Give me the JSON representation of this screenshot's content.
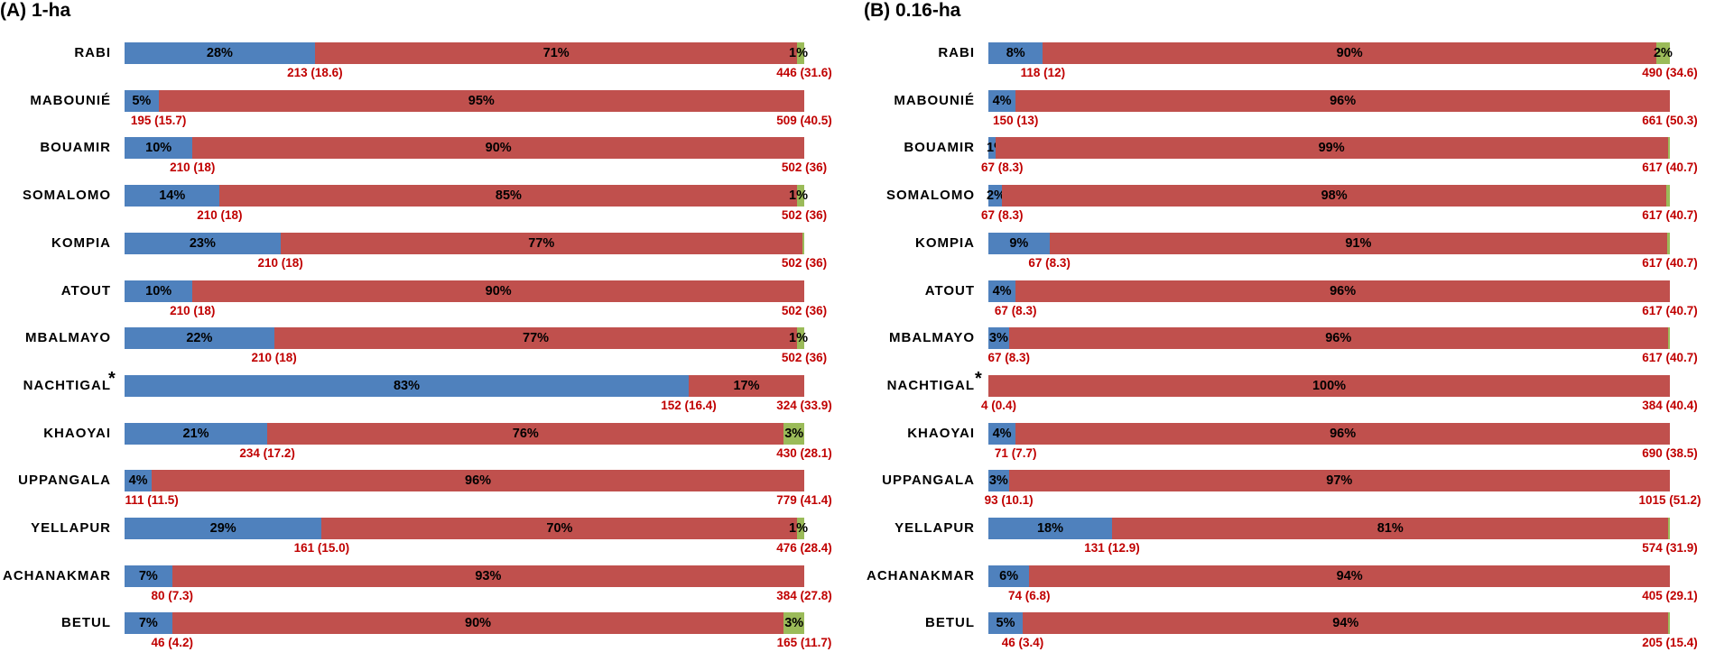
{
  "colors": {
    "seg1": "#4f81bd",
    "seg2": "#c0504d",
    "seg3": "#9bbb59",
    "annotation": "#c00000"
  },
  "chart_data": [
    {
      "type": "bar",
      "orientation": "horizontal",
      "stacked": "percent",
      "title": "(A) 1-ha",
      "categories": [
        "RABI",
        "MABOUNIÉ",
        "BOUAMIR",
        "SOMALOMO",
        "KOMPIA",
        "ATOUT",
        "MBALMAYO",
        "NACHTIGAL",
        "KHAOYAI",
        "UPPANGALA",
        "YELLAPUR",
        "ACHANAKMAR",
        "BETUL"
      ],
      "category_marks": {
        "NACHTIGAL": "*"
      },
      "series": [
        {
          "values": [
            28,
            5,
            10,
            14,
            23,
            10,
            22,
            83,
            21,
            4,
            29,
            7,
            7
          ],
          "labels": [
            "28%",
            "5%",
            "10%",
            "14%",
            "23%",
            "10%",
            "22%",
            "83%",
            "21%",
            "4%",
            "29%",
            "7%",
            "7%"
          ]
        },
        {
          "values": [
            71,
            95,
            90,
            85,
            77,
            90,
            77,
            17,
            76,
            96,
            70,
            93,
            90
          ],
          "labels": [
            "71%",
            "95%",
            "90%",
            "85%",
            "77%",
            "90%",
            "77%",
            "17%",
            "76%",
            "96%",
            "70%",
            "93%",
            "90%"
          ]
        },
        {
          "values": [
            1,
            0,
            0,
            1,
            0.3,
            0,
            1,
            0,
            3,
            0,
            1,
            0,
            3
          ],
          "labels": [
            "1%",
            "",
            "",
            "1%",
            "",
            "",
            "1%",
            "",
            "3%",
            "",
            "1%",
            "",
            "3%"
          ]
        }
      ],
      "annotations_mid": [
        "213 (18.6)",
        "195 (15.7)",
        "210 (18)",
        "210 (18)",
        "210 (18)",
        "210 (18)",
        "210 (18)",
        "152 (16.4)",
        "234 (17.2)",
        "111 (11.5)",
        "161 (15.0)",
        "80 (7.3)",
        "46 (4.2)"
      ],
      "annotations_end": [
        "446 (31.6)",
        "509 (40.5)",
        "502 (36)",
        "502 (36)",
        "502 (36)",
        "502 (36)",
        "502 (36)",
        "324 (33.9)",
        "430 (28.1)",
        "779 (41.4)",
        "476 (28.4)",
        "384 (27.8)",
        "165 (11.7)"
      ]
    },
    {
      "type": "bar",
      "orientation": "horizontal",
      "stacked": "percent",
      "title": "(B) 0.16-ha",
      "categories": [
        "RABI",
        "MABOUNIÉ",
        "BOUAMIR",
        "SOMALOMO",
        "KOMPIA",
        "ATOUT",
        "MBALMAYO",
        "NACHTIGAL",
        "KHAOYAI",
        "UPPANGALA",
        "YELLAPUR",
        "ACHANAKMAR",
        "BETUL"
      ],
      "category_marks": {
        "NACHTIGAL": "*"
      },
      "series": [
        {
          "values": [
            8,
            4,
            1,
            2,
            9,
            4,
            3,
            0,
            4,
            3,
            18,
            6,
            5
          ],
          "labels": [
            "8%",
            "4%",
            "1%",
            "2%",
            "9%",
            "4%",
            "3%",
            "",
            "4%",
            "3%",
            "18%",
            "6%",
            "5%"
          ]
        },
        {
          "values": [
            90,
            96,
            99,
            98,
            91,
            96,
            96,
            100,
            96,
            97,
            81,
            94,
            94
          ],
          "labels": [
            "90%",
            "96%",
            "99%",
            "98%",
            "91%",
            "96%",
            "96%",
            "100%",
            "96%",
            "97%",
            "81%",
            "94%",
            "94%"
          ]
        },
        {
          "values": [
            2,
            0,
            0.3,
            0.5,
            0.4,
            0,
            0.3,
            0,
            0,
            0,
            0.2,
            0,
            0.2
          ],
          "labels": [
            "2%",
            "",
            "",
            "",
            "",
            "",
            "",
            "",
            "",
            "",
            "",
            "",
            ""
          ]
        }
      ],
      "annotations_mid": [
        "118 (12)",
        "150 (13)",
        "67 (8.3)",
        "67 (8.3)",
        "67 (8.3)",
        "67 (8.3)",
        "67 (8.3)",
        "4 (0.4)",
        "71 (7.7)",
        "93 (10.1)",
        "131 (12.9)",
        "74 (6.8)",
        "46 (3.4)"
      ],
      "annotations_end": [
        "490 (34.6)",
        "661 (50.3)",
        "617 (40.7)",
        "617 (40.7)",
        "617 (40.7)",
        "617 (40.7)",
        "617 (40.7)",
        "384 (40.4)",
        "690 (38.5)",
        "1015 (51.2)",
        "574 (31.9)",
        "405 (29.1)",
        "205 (15.4)"
      ]
    }
  ]
}
